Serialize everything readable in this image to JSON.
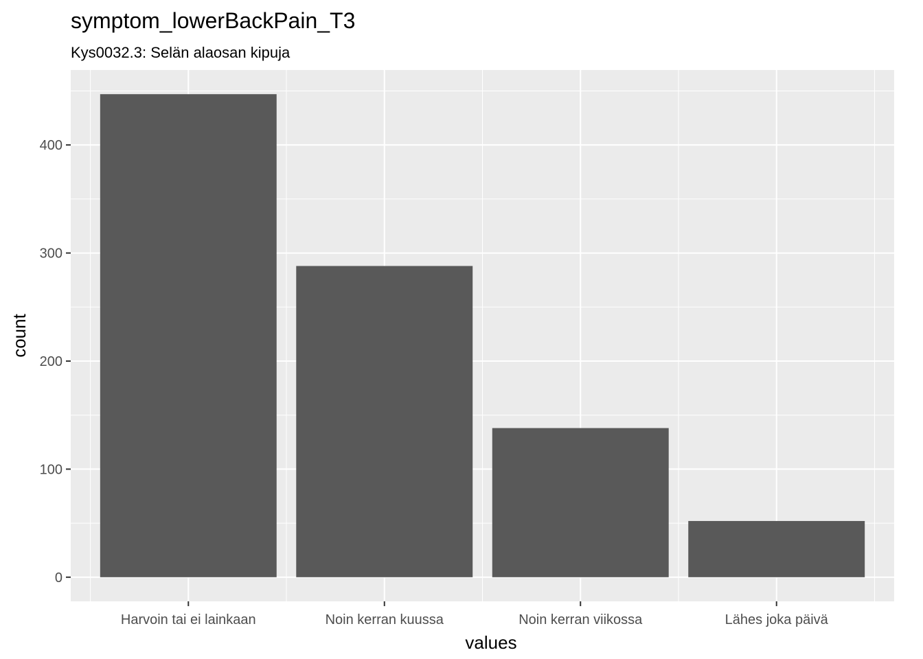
{
  "chart_data": {
    "type": "bar",
    "title": "symptom_lowerBackPain_T3",
    "subtitle": "Kys0032.3: Selän alaosan kipuja",
    "xlabel": "values",
    "ylabel": "count",
    "categories": [
      "Harvoin tai ei lainkaan",
      "Noin kerran kuussa",
      "Noin kerran viikossa",
      "Lähes joka päivä"
    ],
    "values": [
      447,
      288,
      138,
      52
    ],
    "ylim": [
      -22.35,
      469.35
    ],
    "yticks": [
      0,
      100,
      200,
      300,
      400
    ],
    "grid": true,
    "legend": "none",
    "colors": {
      "panel": "#ebebeb",
      "grid_major": "#ffffff",
      "bar": "#595959",
      "tick": "#333333",
      "tick_label": "#4d4d4d"
    }
  }
}
